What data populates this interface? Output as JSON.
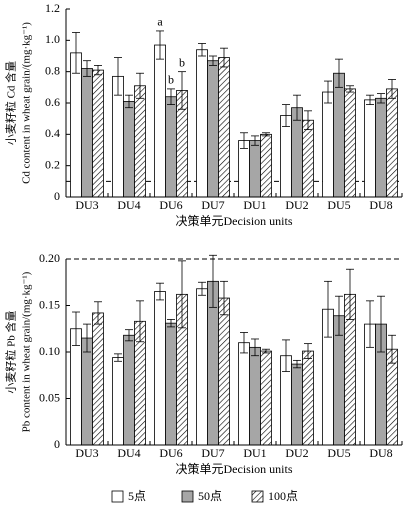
{
  "chart_data": [
    {
      "type": "bar",
      "ylabel": [
        "小麦籽粒 Cd 含量",
        "Cd content in wheat grain/(mg·kg⁻¹)"
      ],
      "xlabel": "决策单元Decision units",
      "categories": [
        "DU3",
        "DU4",
        "DU6",
        "DU7",
        "DU1",
        "DU2",
        "DU5",
        "DU8"
      ],
      "series": [
        {
          "name": "5点",
          "color": "#ffffff",
          "hatch": false,
          "values": [
            0.92,
            0.77,
            0.97,
            0.94,
            0.36,
            0.52,
            0.67,
            0.62
          ],
          "errors": [
            0.13,
            0.12,
            0.09,
            0.04,
            0.05,
            0.07,
            0.07,
            0.03
          ]
        },
        {
          "name": "50点",
          "color": "#a6a6a6",
          "hatch": false,
          "values": [
            0.82,
            0.61,
            0.64,
            0.87,
            0.36,
            0.57,
            0.79,
            0.63
          ],
          "errors": [
            0.05,
            0.04,
            0.05,
            0.03,
            0.03,
            0.08,
            0.09,
            0.03
          ]
        },
        {
          "name": "100点",
          "color": "#ffffff",
          "hatch": true,
          "values": [
            0.81,
            0.71,
            0.68,
            0.89,
            0.4,
            0.49,
            0.69,
            0.69
          ],
          "errors": [
            0.03,
            0.08,
            0.12,
            0.06,
            0.01,
            0.06,
            0.02,
            0.06
          ]
        }
      ],
      "annotations": [
        {
          "text": "a",
          "series": 0,
          "index": 2
        },
        {
          "text": "b",
          "series": 1,
          "index": 2
        },
        {
          "text": "b",
          "series": 2,
          "index": 2
        }
      ],
      "hline": 0.1,
      "ylim": [
        0,
        1.2
      ],
      "yticks": [
        0,
        0.2,
        0.4,
        0.6,
        0.8,
        {
          "value": 1,
          "label": "1.0"
        },
        1.2
      ],
      "grid": false
    },
    {
      "type": "bar",
      "ylabel": [
        "小麦籽粒 Pb 含量",
        "Pb content in wheat grain/(mg·kg⁻¹)"
      ],
      "xlabel": "决策单元Decision units",
      "categories": [
        "DU3",
        "DU4",
        "DU6",
        "DU7",
        "DU1",
        "DU2",
        "DU5",
        "DU8"
      ],
      "series": [
        {
          "color": "#ffffff",
          "hatch": false,
          "values": [
            0.125,
            0.094,
            0.165,
            0.168,
            0.11,
            0.096,
            0.146,
            0.13
          ],
          "errors": [
            0.018,
            0.004,
            0.009,
            0.007,
            0.011,
            0.017,
            0.03,
            0.025
          ]
        },
        {
          "color": "#a6a6a6",
          "hatch": false,
          "values": [
            0.115,
            0.118,
            0.131,
            0.176,
            0.105,
            0.087,
            0.139,
            0.13
          ],
          "errors": [
            0.015,
            0.006,
            0.004,
            0.028,
            0.009,
            0.004,
            0.021,
            0.03
          ]
        },
        {
          "color": "#ffffff",
          "hatch": true,
          "values": [
            0.142,
            0.133,
            0.162,
            0.158,
            0.101,
            0.101,
            0.162,
            0.103
          ],
          "errors": [
            0.012,
            0.022,
            0.036,
            0.018,
            0.002,
            0.008,
            0.027,
            0.015
          ]
        }
      ],
      "hline": 0.2,
      "ylim": [
        0,
        0.2
      ],
      "yticks": [
        0,
        0.05,
        {
          "value": 0.1,
          "label": "0.10"
        },
        0.15,
        {
          "value": 0.2,
          "label": "0.20"
        }
      ],
      "grid": false
    }
  ]
}
